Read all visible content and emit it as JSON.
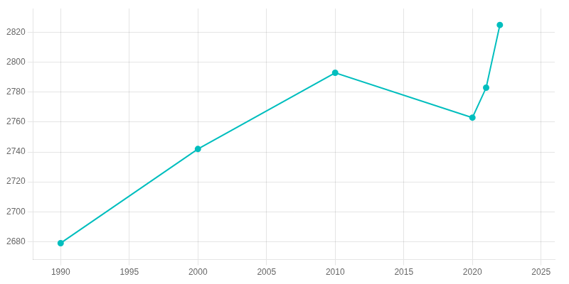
{
  "chart_data": {
    "type": "line",
    "x": [
      1990,
      2000,
      2010,
      2020,
      2021,
      2022
    ],
    "values": [
      2679,
      2742,
      2793,
      2763,
      2783,
      2825
    ],
    "color": "#00BEBE",
    "marker": "circle",
    "xlim": [
      1988,
      2026
    ],
    "ylim": [
      2668,
      2836
    ],
    "xticks": [
      1990,
      1995,
      2000,
      2005,
      2010,
      2015,
      2020,
      2025
    ],
    "yticks": [
      2680,
      2700,
      2720,
      2740,
      2760,
      2780,
      2800,
      2820
    ],
    "grid": true
  }
}
